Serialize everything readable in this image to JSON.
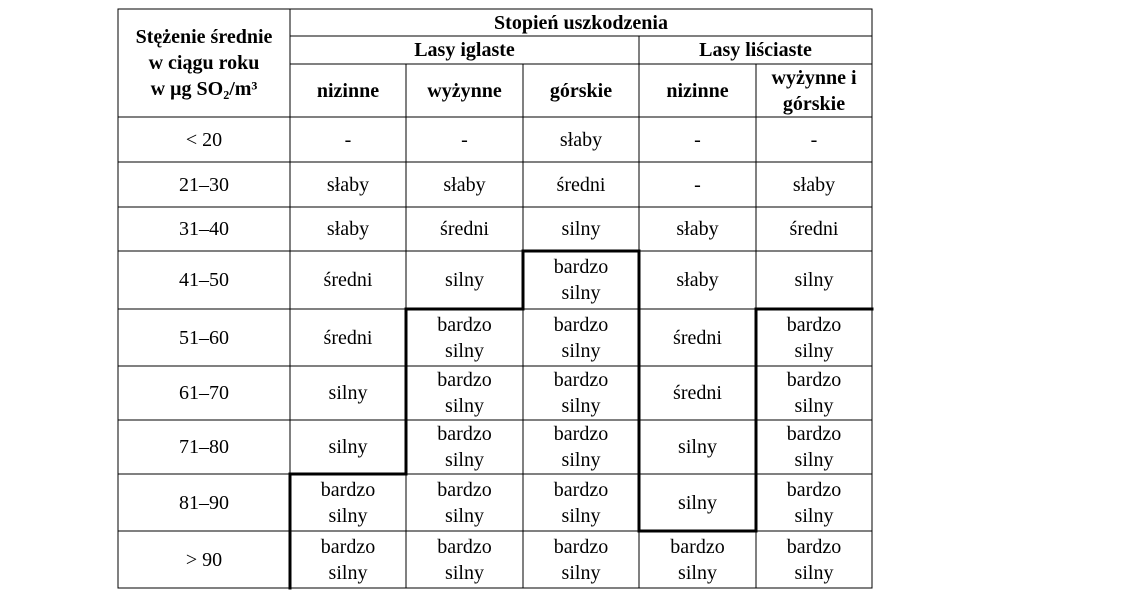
{
  "header": {
    "concentration": [
      "Stężenie średnie",
      "w ciągu roku",
      "w µg SO₂/m³"
    ],
    "damage": "Stopień uszkodzenia",
    "coniferous": "Lasy iglaste",
    "deciduous": "Lasy liściaste",
    "columns": [
      "nizinne",
      "wyżynne",
      "górskie",
      "nizinne",
      "wyżynne i górskie"
    ]
  },
  "rows": [
    [
      "< 20",
      "-",
      "-",
      "słaby",
      "-",
      "-"
    ],
    [
      "21–30",
      "słaby",
      "słaby",
      "średni",
      "-",
      "słaby"
    ],
    [
      "31–40",
      "słaby",
      "średni",
      "silny",
      "słaby",
      "średni"
    ],
    [
      "41–50",
      "średni",
      "silny",
      "bardzo silny",
      "słaby",
      "silny"
    ],
    [
      "51–60",
      "średni",
      "bardzo silny",
      "bardzo silny",
      "średni",
      "bardzo silny"
    ],
    [
      "61–70",
      "silny",
      "bardzo silny",
      "bardzo silny",
      "średni",
      "bardzo silny"
    ],
    [
      "71–80",
      "silny",
      "bardzo silny",
      "bardzo silny",
      "silny",
      "bardzo silny"
    ],
    [
      "81–90",
      "bardzo silny",
      "bardzo silny",
      "bardzo silny",
      "silny",
      "bardzo silny"
    ],
    [
      "> 90",
      "bardzo silny",
      "bardzo silny",
      "bardzo silny",
      "bardzo silny",
      "bardzo silny"
    ]
  ]
}
